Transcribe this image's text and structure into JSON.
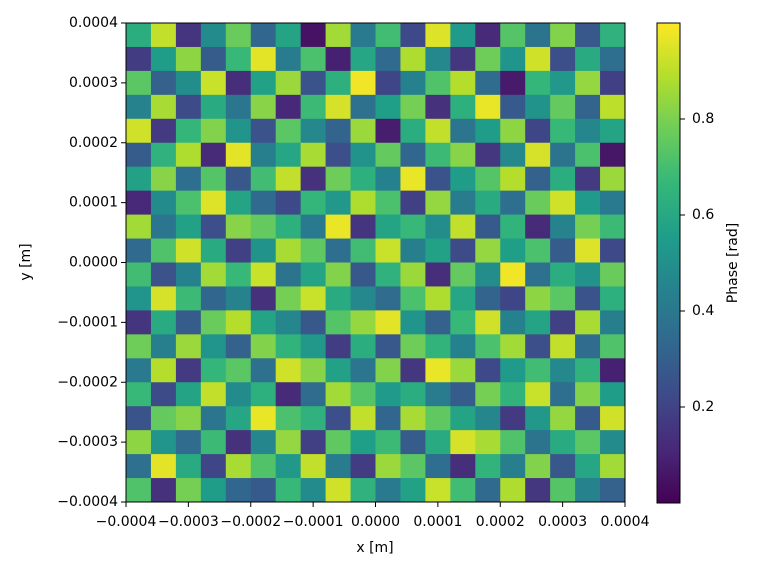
{
  "chart_data": {
    "type": "heatmap",
    "colormap": "viridis",
    "x_label": "x [m]",
    "y_label": "y [m]",
    "colorbar_label": "Phase [rad]",
    "xlim": [
      -0.0004,
      0.0004
    ],
    "ylim": [
      -0.0004,
      0.0004
    ],
    "zlim": [
      0,
      1
    ],
    "xticks": [
      {
        "value": -0.0004,
        "label": "−0.0004"
      },
      {
        "value": -0.0003,
        "label": "−0.0003"
      },
      {
        "value": -0.0002,
        "label": "−0.0002"
      },
      {
        "value": -0.0001,
        "label": "−0.0001"
      },
      {
        "value": 0,
        "label": "0.0000"
      },
      {
        "value": 0.0001,
        "label": "0.0001"
      },
      {
        "value": 0.0002,
        "label": "0.0002"
      },
      {
        "value": 0.0003,
        "label": "0.0003"
      },
      {
        "value": 0.0004,
        "label": "0.0004"
      }
    ],
    "yticks": [
      {
        "value": -0.0004,
        "label": "−0.0004"
      },
      {
        "value": -0.0003,
        "label": "−0.0003"
      },
      {
        "value": -0.0002,
        "label": "−0.0002"
      },
      {
        "value": -0.0001,
        "label": "−0.0001"
      },
      {
        "value": 0,
        "label": "0.0000"
      },
      {
        "value": 0.0001,
        "label": "0.0001"
      },
      {
        "value": 0.0002,
        "label": "0.0002"
      },
      {
        "value": 0.0003,
        "label": "0.0003"
      },
      {
        "value": 0.0004,
        "label": "0.0004"
      }
    ],
    "zticks": [
      0.2,
      0.4,
      0.6,
      0.8
    ],
    "z": [
      [
        0.62,
        0.91,
        0.15,
        0.48,
        0.77,
        0.33,
        0.58,
        0.05,
        0.86,
        0.41,
        0.69,
        0.22,
        0.95,
        0.54,
        0.12,
        0.73,
        0.38,
        0.81,
        0.27,
        0.64
      ],
      [
        0.18,
        0.55,
        0.83,
        0.29,
        0.67,
        0.96,
        0.42,
        0.71,
        0.09,
        0.59,
        0.34,
        0.88,
        0.47,
        0.16,
        0.78,
        0.52,
        0.93,
        0.24,
        0.61,
        0.36
      ],
      [
        0.74,
        0.31,
        0.49,
        0.92,
        0.13,
        0.57,
        0.85,
        0.26,
        0.63,
        0.98,
        0.21,
        0.44,
        0.72,
        0.89,
        0.35,
        0.07,
        0.66,
        0.53,
        0.84,
        0.19
      ],
      [
        0.45,
        0.87,
        0.23,
        0.61,
        0.39,
        0.82,
        0.11,
        0.68,
        0.94,
        0.37,
        0.56,
        0.79,
        0.14,
        0.63,
        0.97,
        0.28,
        0.51,
        0.76,
        0.32,
        0.9
      ],
      [
        0.93,
        0.17,
        0.66,
        0.81,
        0.52,
        0.25,
        0.74,
        0.47,
        0.32,
        0.85,
        0.08,
        0.62,
        0.91,
        0.39,
        0.55,
        0.83,
        0.21,
        0.67,
        0.46,
        0.58
      ],
      [
        0.29,
        0.64,
        0.88,
        0.12,
        0.96,
        0.43,
        0.59,
        0.87,
        0.24,
        0.51,
        0.76,
        0.33,
        0.68,
        0.82,
        0.16,
        0.47,
        0.94,
        0.38,
        0.71,
        0.06
      ],
      [
        0.57,
        0.82,
        0.36,
        0.73,
        0.27,
        0.69,
        0.91,
        0.14,
        0.78,
        0.63,
        0.44,
        0.97,
        0.26,
        0.55,
        0.73,
        0.89,
        0.31,
        0.62,
        0.17,
        0.85
      ],
      [
        0.11,
        0.48,
        0.71,
        0.95,
        0.58,
        0.34,
        0.22,
        0.66,
        0.53,
        0.88,
        0.71,
        0.19,
        0.84,
        0.42,
        0.61,
        0.36,
        0.77,
        0.93,
        0.54,
        0.41
      ],
      [
        0.86,
        0.39,
        0.57,
        0.24,
        0.82,
        0.76,
        0.63,
        0.41,
        0.97,
        0.15,
        0.58,
        0.67,
        0.49,
        0.91,
        0.28,
        0.65,
        0.12,
        0.45,
        0.79,
        0.68
      ],
      [
        0.34,
        0.72,
        0.93,
        0.61,
        0.19,
        0.51,
        0.87,
        0.75,
        0.36,
        0.69,
        0.92,
        0.43,
        0.57,
        0.23,
        0.84,
        0.56,
        0.71,
        0.29,
        0.95,
        0.22
      ],
      [
        0.69,
        0.25,
        0.44,
        0.86,
        0.67,
        0.92,
        0.38,
        0.58,
        0.81,
        0.27,
        0.64,
        0.85,
        0.13,
        0.76,
        0.49,
        0.98,
        0.37,
        0.62,
        0.51,
        0.77
      ],
      [
        0.52,
        0.94,
        0.68,
        0.33,
        0.45,
        0.14,
        0.79,
        0.92,
        0.61,
        0.47,
        0.35,
        0.71,
        0.88,
        0.59,
        0.32,
        0.21,
        0.83,
        0.74,
        0.26,
        0.63
      ],
      [
        0.15,
        0.61,
        0.29,
        0.77,
        0.89,
        0.58,
        0.46,
        0.27,
        0.73,
        0.84,
        0.96,
        0.52,
        0.31,
        0.67,
        0.93,
        0.44,
        0.58,
        0.19,
        0.87,
        0.43
      ],
      [
        0.78,
        0.43,
        0.85,
        0.52,
        0.31,
        0.81,
        0.65,
        0.53,
        0.18,
        0.62,
        0.27,
        0.78,
        0.65,
        0.44,
        0.71,
        0.86,
        0.24,
        0.91,
        0.35,
        0.72
      ],
      [
        0.41,
        0.89,
        0.17,
        0.66,
        0.74,
        0.37,
        0.93,
        0.82,
        0.57,
        0.39,
        0.81,
        0.16,
        0.97,
        0.85,
        0.22,
        0.54,
        0.69,
        0.47,
        0.64,
        0.09
      ],
      [
        0.67,
        0.23,
        0.58,
        0.91,
        0.48,
        0.63,
        0.12,
        0.35,
        0.86,
        0.73,
        0.54,
        0.62,
        0.42,
        0.29,
        0.79,
        0.65,
        0.92,
        0.36,
        0.81,
        0.55
      ],
      [
        0.26,
        0.76,
        0.82,
        0.39,
        0.59,
        0.97,
        0.71,
        0.64,
        0.24,
        0.91,
        0.33,
        0.87,
        0.75,
        0.58,
        0.46,
        0.17,
        0.53,
        0.84,
        0.28,
        0.93
      ],
      [
        0.83,
        0.52,
        0.35,
        0.68,
        0.14,
        0.46,
        0.84,
        0.19,
        0.75,
        0.56,
        0.68,
        0.29,
        0.61,
        0.94,
        0.87,
        0.72,
        0.38,
        0.61,
        0.74,
        0.48
      ],
      [
        0.37,
        0.96,
        0.61,
        0.21,
        0.87,
        0.72,
        0.53,
        0.91,
        0.42,
        0.18,
        0.85,
        0.74,
        0.36,
        0.13,
        0.65,
        0.43,
        0.81,
        0.27,
        0.59,
        0.86
      ],
      [
        0.72,
        0.14,
        0.79,
        0.55,
        0.33,
        0.28,
        0.67,
        0.48,
        0.93,
        0.64,
        0.41,
        0.57,
        0.92,
        0.69,
        0.34,
        0.88,
        0.16,
        0.73,
        0.45,
        0.31
      ]
    ]
  }
}
